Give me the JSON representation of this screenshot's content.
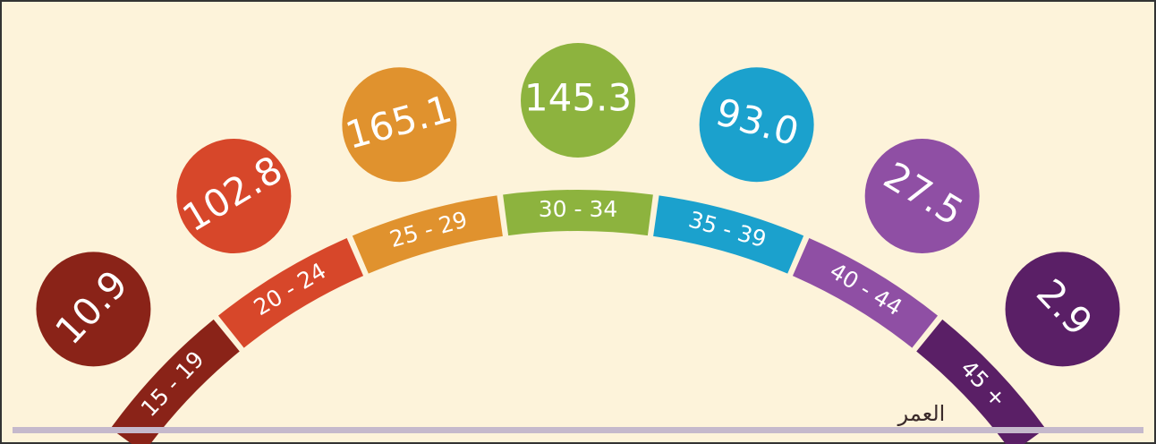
{
  "axis_label": "العمر",
  "groups": [
    {
      "label": "15 - 19",
      "value": "10.9",
      "color": "#8a2318"
    },
    {
      "label": "20 - 24",
      "value": "102.8",
      "color": "#d7472a"
    },
    {
      "label": "25 - 29",
      "value": "165.1",
      "color": "#e0922e"
    },
    {
      "label": "30 - 34",
      "value": "145.3",
      "color": "#8db33e"
    },
    {
      "label": "35 - 39",
      "value": "93.0",
      "color": "#1ba1cd"
    },
    {
      "label": "40 - 44",
      "value": "27.5",
      "color": "#8f4fa4"
    },
    {
      "label": "45 +",
      "value": "2.9",
      "color": "#5a1f66"
    }
  ]
}
